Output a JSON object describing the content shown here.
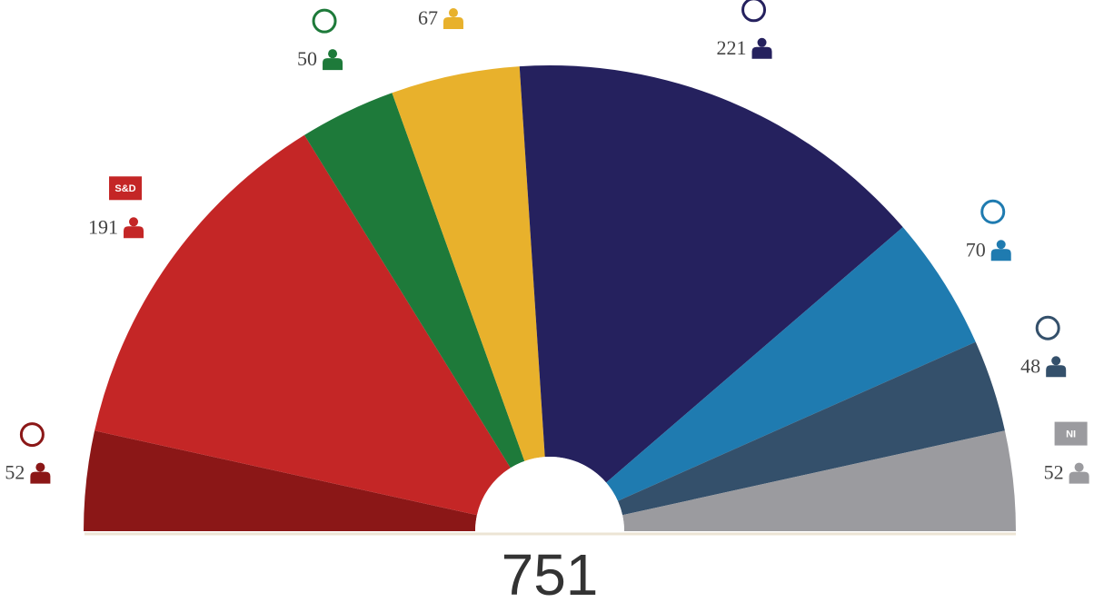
{
  "chart_data": {
    "type": "parliament",
    "categories": [
      null,
      "S&D",
      null,
      null,
      null,
      null,
      null,
      "NI"
    ],
    "series": [
      {
        "values": [
          52,
          191,
          50,
          67,
          221,
          70,
          48,
          52
        ],
        "colors": [
          "#8b1717",
          "#c42626",
          "#1e7a3a",
          "#e8b12c",
          "#25215e",
          "#1f7bb0",
          "#34506b",
          "#9b9b9f"
        ]
      }
    ],
    "total": 751
  }
}
